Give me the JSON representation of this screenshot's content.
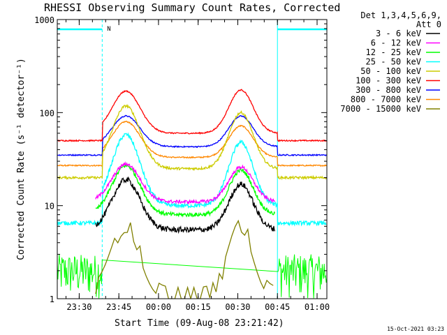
{
  "chart_data": {
    "type": "line",
    "title": "RHESSI Observing Summary Count Rates, Corrected",
    "xlabel": "Start Time (09-Aug-08 23:21:42)",
    "ylabel": "Corrected Count Rate (s⁻¹ detector⁻¹)",
    "y_scale": "log",
    "ylim": [
      1,
      1000
    ],
    "yticks": [
      "1",
      "10",
      "100",
      "1000"
    ],
    "xlim_minutes_from_2321": [
      0,
      102
    ],
    "xticks": [
      {
        "label": "23:30",
        "minute": 8.3
      },
      {
        "label": "23:45",
        "minute": 23.3
      },
      {
        "label": "00:00",
        "minute": 38.3
      },
      {
        "label": "00:15",
        "minute": 53.3
      },
      {
        "label": "00:30",
        "minute": 68.3
      },
      {
        "label": "00:45",
        "minute": 83.3
      },
      {
        "label": "01:00",
        "minute": 98.3
      }
    ],
    "legend_header": [
      "Det 1,3,4,5,6,9,",
      "Att 0"
    ],
    "legend_placement": "right",
    "annotations": [
      {
        "text": "N",
        "minute": 18.3
      }
    ],
    "night_intervals_minutes": [
      [
        0,
        17.0
      ],
      [
        83.3,
        102
      ]
    ],
    "footer_date": "15-Oct-2021 03:23",
    "series": [
      {
        "name": "3 - 6 keV",
        "color": "#000000",
        "start": 14.5,
        "end": 82.5,
        "base": 5.5,
        "p1": 19,
        "p2": 17,
        "noise": 0.07
      },
      {
        "name": "6 - 12 keV",
        "color": "#ff00ff",
        "start": 14.5,
        "end": 82.5,
        "base": 11,
        "p1": 28,
        "p2": 26,
        "noise": 0.04
      },
      {
        "name": "12 - 25 keV",
        "color": "#00ff00",
        "start": 14.5,
        "end": 82.5,
        "base": 8,
        "p1": 27,
        "p2": 24,
        "noise": 0.05
      },
      {
        "name": "25 - 50 keV",
        "color": "#00ffff",
        "start": 0,
        "end": 102,
        "base": 10,
        "pre": 6.5,
        "p1": 58,
        "p2": 48,
        "noise": 0.05
      },
      {
        "name": "50 - 100 keV",
        "color": "#cccc00",
        "start": 0,
        "end": 102,
        "base": 25,
        "pre": 20,
        "p1": 118,
        "p2": 100,
        "noise": 0.03
      },
      {
        "name": "100 - 300 keV",
        "color": "#ff0000",
        "start": 0,
        "end": 102,
        "base": 60,
        "pre": 50,
        "p1": 170,
        "p2": 175,
        "noise": 0.015
      },
      {
        "name": "300 - 800 keV",
        "color": "#0000ff",
        "start": 0,
        "end": 102,
        "base": 43,
        "pre": 35,
        "p1": 92,
        "p2": 92,
        "noise": 0.015
      },
      {
        "name": "800 - 7000 keV",
        "color": "#ff8800",
        "start": 0,
        "end": 102,
        "base": 33,
        "pre": 27,
        "p1": 80,
        "p2": 72,
        "noise": 0.015
      },
      {
        "name": "7000 - 15000 keV",
        "color": "#808000",
        "start": 14.5,
        "end": 82.5,
        "base": 1.2,
        "p1": 6.5,
        "p2": 6.5,
        "noise": 0.1,
        "step": true
      }
    ],
    "background_series": {
      "color": "#00ff00",
      "range_minutes": [
        [
          0,
          17.0
        ],
        [
          83.3,
          102
        ]
      ],
      "values_range": [
        1,
        3
      ]
    }
  }
}
